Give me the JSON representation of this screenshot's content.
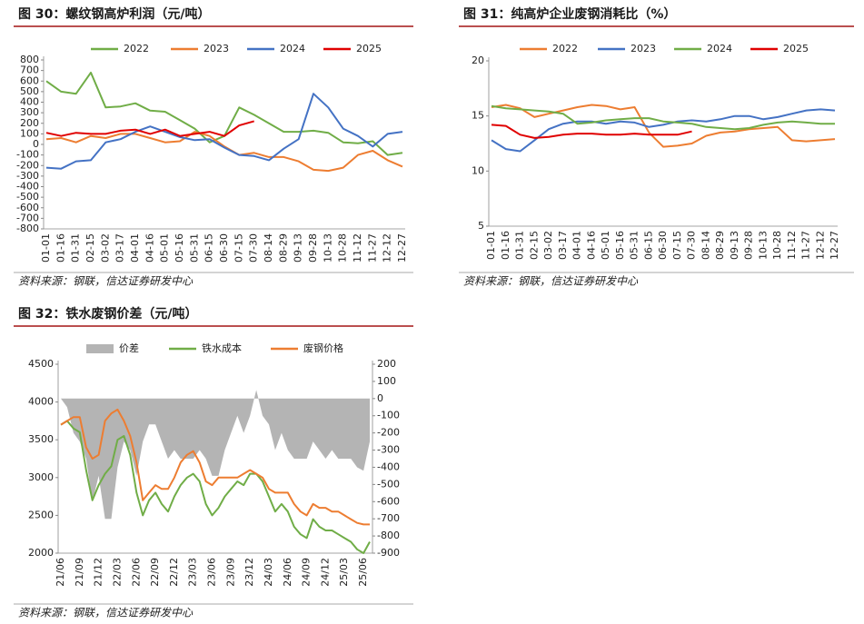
{
  "chart_data": [
    {
      "type": "line",
      "title": "图 30：螺纹钢高炉利润（元/吨）",
      "source": "资料来源：钢联，信达证券研发中心",
      "categories": [
        "01-01",
        "01-16",
        "01-31",
        "02-15",
        "03-02",
        "03-17",
        "04-01",
        "04-16",
        "05-01",
        "05-16",
        "05-31",
        "06-15",
        "06-30",
        "07-15",
        "07-30",
        "08-14",
        "08-29",
        "09-13",
        "09-28",
        "10-13",
        "10-28",
        "11-12",
        "11-27",
        "12-12",
        "12-27"
      ],
      "ylim": [
        -800,
        800
      ],
      "yticks": [
        -800,
        -700,
        -600,
        -500,
        -400,
        -300,
        -200,
        -100,
        0,
        100,
        200,
        300,
        400,
        500,
        600,
        700,
        800
      ],
      "series": [
        {
          "name": "2022",
          "color": "#70ad47",
          "values": [
            600,
            500,
            480,
            680,
            350,
            360,
            390,
            320,
            310,
            230,
            150,
            20,
            80,
            350,
            280,
            200,
            120,
            120,
            130,
            110,
            20,
            10,
            30,
            -100,
            -80
          ]
        },
        {
          "name": "2023",
          "color": "#ed7d31",
          "values": [
            50,
            60,
            20,
            80,
            60,
            100,
            100,
            60,
            20,
            30,
            120,
            80,
            -20,
            -100,
            -80,
            -120,
            -120,
            -160,
            -240,
            -250,
            -220,
            -100,
            -60,
            -150,
            -210
          ]
        },
        {
          "name": "2024",
          "color": "#4472c4",
          "values": [
            -220,
            -230,
            -160,
            -150,
            20,
            50,
            120,
            170,
            120,
            70,
            40,
            50,
            -30,
            -100,
            -110,
            -150,
            -40,
            50,
            480,
            350,
            150,
            80,
            -20,
            100,
            120
          ]
        },
        {
          "name": "2025",
          "color": "#e00000",
          "values": [
            110,
            80,
            110,
            100,
            100,
            130,
            140,
            100,
            140,
            80,
            100,
            120,
            80,
            180,
            220,
            null,
            null,
            null,
            null,
            null,
            null,
            null,
            null,
            null,
            null
          ]
        }
      ]
    },
    {
      "type": "line",
      "title": "图 31：纯高炉企业废钢消耗比（%）",
      "source": "资料来源：钢联，信达证券研发中心",
      "categories": [
        "01-01",
        "01-16",
        "01-31",
        "02-15",
        "03-02",
        "03-17",
        "04-01",
        "04-16",
        "05-01",
        "05-16",
        "05-31",
        "06-15",
        "06-30",
        "07-15",
        "07-30",
        "08-14",
        "08-29",
        "09-13",
        "09-28",
        "10-13",
        "10-28",
        "11-12",
        "11-27",
        "12-12",
        "12-27"
      ],
      "ylim": [
        5,
        20
      ],
      "yticks": [
        5,
        10,
        15,
        20
      ],
      "series": [
        {
          "name": "2022",
          "color": "#ed7d31",
          "values": [
            15.8,
            16.0,
            15.7,
            14.9,
            15.2,
            15.5,
            15.8,
            16.0,
            15.9,
            15.6,
            15.8,
            13.5,
            12.2,
            12.3,
            12.5,
            13.2,
            13.5,
            13.6,
            13.8,
            13.9,
            14.0,
            12.8,
            12.7,
            12.8,
            12.9
          ]
        },
        {
          "name": "2023",
          "color": "#4472c4",
          "values": [
            12.8,
            12.0,
            11.8,
            12.8,
            13.8,
            14.3,
            14.5,
            14.5,
            14.3,
            14.5,
            14.4,
            14.0,
            14.2,
            14.5,
            14.6,
            14.5,
            14.7,
            15.0,
            15.0,
            14.7,
            14.9,
            15.2,
            15.5,
            15.6,
            15.5
          ]
        },
        {
          "name": "2024",
          "color": "#70ad47",
          "values": [
            15.9,
            15.7,
            15.6,
            15.5,
            15.4,
            15.2,
            14.3,
            14.4,
            14.6,
            14.7,
            14.8,
            14.8,
            14.5,
            14.4,
            14.3,
            14.0,
            13.9,
            13.8,
            13.9,
            14.2,
            14.4,
            14.5,
            14.4,
            14.3,
            14.3
          ]
        },
        {
          "name": "2025",
          "color": "#e00000",
          "values": [
            14.2,
            14.1,
            13.3,
            13.0,
            13.1,
            13.3,
            13.4,
            13.4,
            13.3,
            13.3,
            13.4,
            13.3,
            13.3,
            13.3,
            13.6,
            null,
            null,
            null,
            null,
            null,
            null,
            null,
            null,
            null,
            null
          ]
        }
      ]
    },
    {
      "type": "line",
      "title": "图 32：铁水废钢价差（元/吨）",
      "source": "资料来源：钢联，信达证券研发中心",
      "categories": [
        "21/06",
        null,
        null,
        "21/09",
        null,
        null,
        "21/12",
        null,
        null,
        "22/03",
        null,
        null,
        "22/06",
        null,
        null,
        "22/09",
        null,
        null,
        "22/12",
        null,
        null,
        "23/03",
        null,
        null,
        "23/06",
        null,
        null,
        "23/09",
        null,
        null,
        "23/12",
        null,
        null,
        "24/03",
        null,
        null,
        "24/06",
        null,
        null,
        "24/09",
        null,
        null,
        "24/12",
        null,
        null,
        "25/03",
        null,
        null,
        "25/06",
        null
      ],
      "ylim": [
        2000,
        4500
      ],
      "yticks": [
        2000,
        2500,
        3000,
        3500,
        4000,
        4500
      ],
      "y2lim": [
        -900,
        200
      ],
      "y2ticks": [
        -900,
        -800,
        -700,
        -600,
        -500,
        -400,
        -300,
        -200,
        -100,
        0,
        100,
        200
      ],
      "series": [
        {
          "name": "价差",
          "type": "area",
          "axis": "y2",
          "color": "#b4b4b4",
          "values": [
            0,
            -50,
            -200,
            -250,
            -350,
            -600,
            -450,
            -700,
            -700,
            -400,
            -250,
            -300,
            -450,
            -250,
            -150,
            -150,
            -250,
            -350,
            -300,
            -350,
            -350,
            -350,
            -300,
            -350,
            -450,
            -450,
            -300,
            -200,
            -100,
            -200,
            -100,
            50,
            -100,
            -150,
            -300,
            -200,
            -300,
            -350,
            -350,
            -350,
            -250,
            -300,
            -350,
            -300,
            -350,
            -350,
            -350,
            -400,
            -420,
            -250
          ]
        },
        {
          "name": "铁水成本",
          "color": "#70ad47",
          "values": [
            3700,
            3750,
            3650,
            3600,
            3100,
            2700,
            2900,
            3050,
            3150,
            3500,
            3550,
            3300,
            2800,
            2500,
            2700,
            2800,
            2650,
            2550,
            2750,
            2900,
            3000,
            3050,
            2950,
            2650,
            2500,
            2600,
            2750,
            2850,
            2950,
            2900,
            3050,
            3050,
            2950,
            2750,
            2550,
            2650,
            2550,
            2350,
            2250,
            2200,
            2450,
            2350,
            2300,
            2300,
            2250,
            2200,
            2150,
            2050,
            2000,
            2150
          ]
        },
        {
          "name": "废钢价格",
          "color": "#ed7d31",
          "values": [
            3700,
            3750,
            3800,
            3800,
            3400,
            3250,
            3300,
            3750,
            3850,
            3900,
            3750,
            3550,
            3200,
            2700,
            2800,
            2900,
            2850,
            2850,
            3000,
            3200,
            3300,
            3350,
            3200,
            2950,
            2900,
            3000,
            3000,
            3000,
            3000,
            3050,
            3100,
            3050,
            3000,
            2850,
            2800,
            2800,
            2800,
            2650,
            2550,
            2500,
            2650,
            2600,
            2600,
            2550,
            2550,
            2500,
            2450,
            2400,
            2380,
            2380
          ]
        }
      ]
    }
  ]
}
